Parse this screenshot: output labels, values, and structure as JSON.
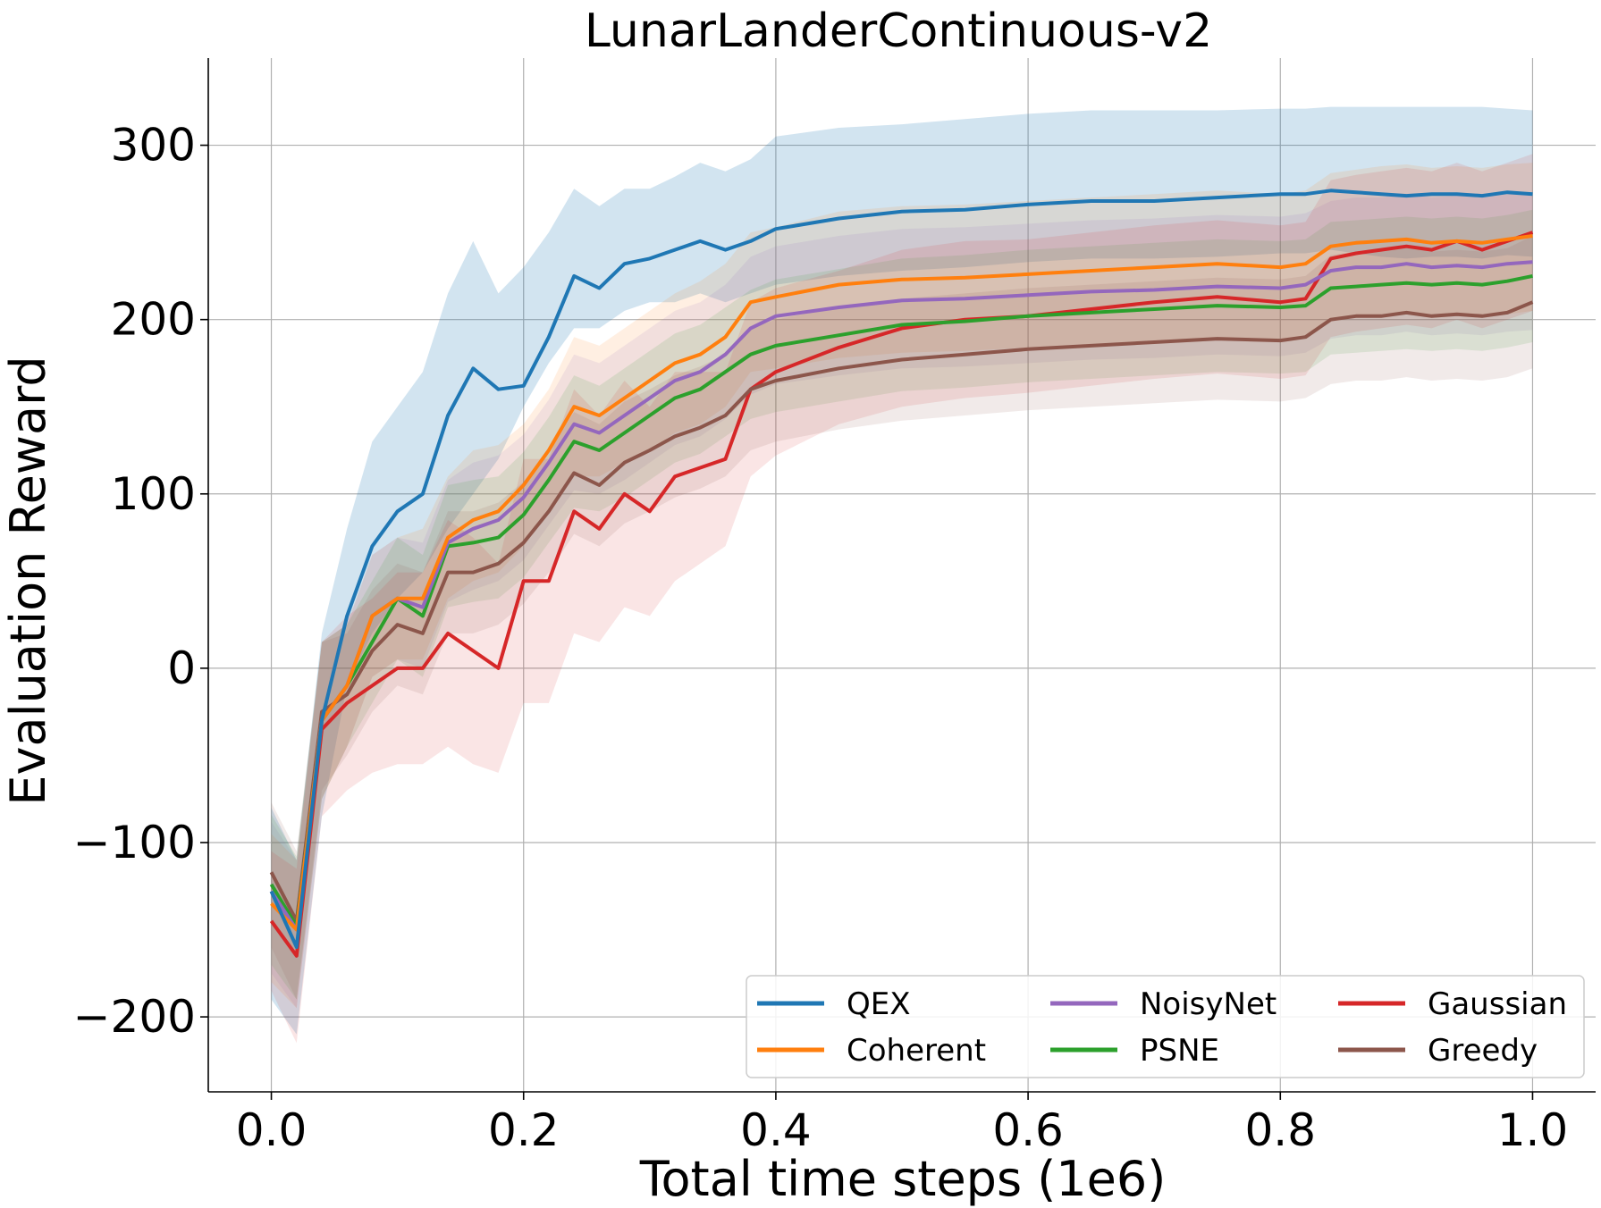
{
  "chart_data": {
    "type": "line",
    "title": "LunarLanderContinuous-v2",
    "xlabel": "Total time steps (1e6)",
    "ylabel": "Evaluation Reward",
    "xlim": [
      -0.05,
      1.05
    ],
    "ylim": [
      -243,
      350
    ],
    "xticks": [
      0.0,
      0.2,
      0.4,
      0.6,
      0.8,
      1.0
    ],
    "xtick_labels": [
      "0.0",
      "0.2",
      "0.4",
      "0.6",
      "0.8",
      "1.0"
    ],
    "yticks": [
      -200,
      -100,
      0,
      100,
      200,
      300
    ],
    "ytick_labels": [
      "−200",
      "−100",
      "0",
      "100",
      "200",
      "300"
    ],
    "grid": true,
    "legend_position": "bottom-right",
    "legend_columns": 3,
    "x": [
      0.0,
      0.02,
      0.04,
      0.06,
      0.08,
      0.1,
      0.12,
      0.14,
      0.16,
      0.18,
      0.2,
      0.22,
      0.24,
      0.26,
      0.28,
      0.3,
      0.32,
      0.34,
      0.36,
      0.38,
      0.4,
      0.45,
      0.5,
      0.55,
      0.6,
      0.65,
      0.7,
      0.75,
      0.8,
      0.82,
      0.84,
      0.86,
      0.88,
      0.9,
      0.92,
      0.94,
      0.96,
      0.98,
      1.0
    ],
    "series": [
      {
        "name": "QEX",
        "color": "#1f77b4",
        "values": [
          -128,
          -160,
          -30,
          30,
          70,
          90,
          100,
          145,
          172,
          160,
          162,
          190,
          225,
          218,
          232,
          235,
          240,
          245,
          240,
          245,
          252,
          258,
          262,
          263,
          266,
          268,
          268,
          270,
          272,
          272,
          274,
          273,
          272,
          271,
          272,
          272,
          271,
          273,
          272
        ],
        "lower": [
          -190,
          -210,
          -85,
          -10,
          20,
          40,
          55,
          80,
          100,
          120,
          150,
          175,
          195,
          195,
          205,
          210,
          210,
          215,
          210,
          215,
          220,
          225,
          228,
          230,
          233,
          235,
          235,
          236,
          238,
          238,
          240,
          238,
          236,
          235,
          236,
          236,
          235,
          237,
          236
        ],
        "upper": [
          -80,
          -110,
          20,
          80,
          130,
          150,
          170,
          215,
          245,
          215,
          230,
          250,
          275,
          265,
          275,
          275,
          282,
          290,
          285,
          292,
          305,
          310,
          312,
          315,
          318,
          320,
          320,
          320,
          321,
          321,
          322,
          322,
          322,
          322,
          322,
          322,
          322,
          321,
          320
        ]
      },
      {
        "name": "Coherent",
        "color": "#ff7f0e",
        "values": [
          -135,
          -150,
          -30,
          -10,
          30,
          40,
          40,
          75,
          85,
          90,
          105,
          125,
          150,
          145,
          155,
          165,
          175,
          180,
          190,
          210,
          213,
          220,
          223,
          224,
          226,
          228,
          230,
          232,
          230,
          232,
          242,
          244,
          245,
          246,
          244,
          245,
          244,
          246,
          248
        ],
        "lower": [
          -180,
          -195,
          -75,
          -45,
          -5,
          5,
          5,
          40,
          50,
          55,
          70,
          90,
          110,
          110,
          118,
          125,
          135,
          140,
          150,
          170,
          172,
          178,
          181,
          182,
          184,
          186,
          188,
          190,
          188,
          190,
          200,
          201,
          202,
          203,
          201,
          202,
          201,
          203,
          205
        ],
        "upper": [
          -95,
          -110,
          15,
          25,
          65,
          75,
          80,
          110,
          125,
          128,
          140,
          160,
          190,
          185,
          195,
          205,
          215,
          222,
          232,
          250,
          253,
          262,
          265,
          266,
          268,
          270,
          272,
          274,
          272,
          274,
          284,
          286,
          288,
          289,
          287,
          288,
          287,
          289,
          290
        ]
      },
      {
        "name": "NoisyNet",
        "color": "#9467bd",
        "values": [
          -128,
          -150,
          -30,
          -10,
          30,
          40,
          35,
          72,
          80,
          85,
          98,
          118,
          140,
          135,
          145,
          155,
          165,
          170,
          180,
          195,
          202,
          207,
          211,
          212,
          214,
          216,
          217,
          219,
          218,
          220,
          228,
          230,
          230,
          232,
          230,
          231,
          230,
          232,
          233
        ],
        "lower": [
          -175,
          -195,
          -75,
          -45,
          -5,
          5,
          0,
          38,
          45,
          50,
          62,
          82,
          102,
          100,
          108,
          118,
          128,
          133,
          143,
          157,
          163,
          168,
          172,
          173,
          175,
          177,
          178,
          180,
          179,
          181,
          189,
          191,
          191,
          193,
          191,
          192,
          191,
          193,
          194
        ],
        "upper": [
          -88,
          -110,
          15,
          25,
          65,
          75,
          72,
          108,
          118,
          122,
          134,
          154,
          180,
          175,
          185,
          195,
          205,
          210,
          220,
          236,
          242,
          248,
          252,
          253,
          255,
          257,
          258,
          260,
          259,
          261,
          268,
          270,
          270,
          272,
          270,
          271,
          270,
          272,
          273
        ]
      },
      {
        "name": "PSNE",
        "color": "#2ca02c",
        "values": [
          -124,
          -148,
          -30,
          -10,
          15,
          40,
          30,
          70,
          72,
          75,
          88,
          108,
          130,
          125,
          135,
          145,
          155,
          160,
          170,
          180,
          185,
          191,
          197,
          199,
          202,
          204,
          206,
          208,
          207,
          208,
          218,
          219,
          220,
          221,
          220,
          221,
          220,
          222,
          225
        ],
        "lower": [
          -170,
          -190,
          -75,
          -45,
          -20,
          5,
          -5,
          35,
          38,
          40,
          52,
          72,
          92,
          90,
          98,
          108,
          118,
          123,
          133,
          143,
          147,
          153,
          159,
          161,
          164,
          166,
          168,
          170,
          169,
          170,
          180,
          181,
          182,
          183,
          182,
          183,
          182,
          184,
          187
        ],
        "upper": [
          -84,
          -108,
          15,
          25,
          50,
          75,
          65,
          105,
          108,
          110,
          124,
          144,
          168,
          162,
          172,
          182,
          192,
          197,
          207,
          217,
          223,
          229,
          235,
          237,
          240,
          242,
          244,
          246,
          245,
          246,
          256,
          257,
          258,
          259,
          258,
          259,
          258,
          260,
          263
        ]
      },
      {
        "name": "Gaussian",
        "color": "#d62728",
        "values": [
          -145,
          -165,
          -35,
          -20,
          -10,
          0,
          0,
          20,
          10,
          0,
          50,
          50,
          90,
          80,
          100,
          90,
          110,
          115,
          120,
          160,
          170,
          184,
          195,
          200,
          202,
          206,
          210,
          213,
          210,
          212,
          235,
          238,
          240,
          242,
          240,
          245,
          240,
          245,
          250
        ],
        "lower": [
          -185,
          -215,
          -85,
          -70,
          -60,
          -55,
          -55,
          -45,
          -55,
          -60,
          -20,
          -20,
          20,
          15,
          35,
          30,
          50,
          60,
          70,
          110,
          122,
          140,
          150,
          155,
          158,
          162,
          166,
          169,
          166,
          168,
          190,
          193,
          195,
          197,
          195,
          200,
          195,
          200,
          205
        ],
        "upper": [
          -105,
          -115,
          15,
          30,
          40,
          55,
          55,
          85,
          75,
          60,
          120,
          120,
          160,
          145,
          165,
          150,
          170,
          170,
          170,
          210,
          218,
          228,
          240,
          245,
          246,
          250,
          254,
          257,
          254,
          256,
          280,
          283,
          285,
          287,
          285,
          290,
          285,
          290,
          295
        ]
      },
      {
        "name": "Greedy",
        "color": "#8c564b",
        "values": [
          -117,
          -145,
          -25,
          -15,
          10,
          25,
          20,
          55,
          55,
          60,
          72,
          90,
          112,
          105,
          118,
          125,
          133,
          138,
          145,
          160,
          165,
          172,
          177,
          180,
          183,
          185,
          187,
          189,
          188,
          190,
          200,
          202,
          202,
          204,
          202,
          203,
          202,
          204,
          210
        ],
        "lower": [
          -160,
          -190,
          -70,
          -50,
          -25,
          -10,
          -15,
          20,
          20,
          25,
          37,
          55,
          77,
          70,
          83,
          90,
          98,
          103,
          110,
          125,
          130,
          137,
          142,
          145,
          148,
          150,
          152,
          154,
          153,
          155,
          163,
          165,
          165,
          167,
          165,
          166,
          165,
          167,
          172
        ],
        "upper": [
          -77,
          -105,
          15,
          20,
          45,
          60,
          55,
          90,
          90,
          95,
          107,
          125,
          147,
          140,
          153,
          160,
          168,
          173,
          180,
          195,
          200,
          207,
          212,
          215,
          218,
          220,
          222,
          224,
          223,
          225,
          237,
          239,
          239,
          241,
          239,
          240,
          239,
          241,
          248
        ]
      }
    ]
  }
}
